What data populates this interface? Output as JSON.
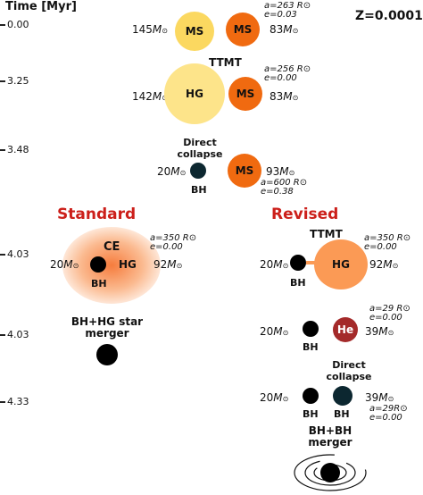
{
  "axis": {
    "title": "Time [Myr]"
  },
  "metallicity": "Z=0.0001",
  "times": [
    "0.00",
    "3.25",
    "3.48",
    "4.03",
    "4.03",
    "4.33"
  ],
  "stage1": {
    "m1": "145",
    "m2": "83",
    "s1": "MS",
    "s2": "MS",
    "a": "a=263 R",
    "e": "e=0.03"
  },
  "stage2": {
    "title": "TTMT",
    "m1": "142",
    "m2": "83",
    "s1": "HG",
    "s2": "MS",
    "a": "a=256 R",
    "e": "e=0.00"
  },
  "stage3": {
    "caption_l1": "Direct",
    "caption_l2": "collapse",
    "m1": "20",
    "m2": "93",
    "s1": "BH",
    "s2": "MS",
    "a": "a=600 R",
    "e": "e=0.38"
  },
  "standard": {
    "title": "Standard",
    "ce": {
      "label": "CE",
      "m1": "20",
      "m2": "92",
      "s1": "BH",
      "s2": "HG",
      "a": "a=350 R",
      "e": "e=0.00"
    },
    "merger_l1": "BH+HG star",
    "merger_l2": "merger"
  },
  "revised": {
    "title": "Revised",
    "ttmt": {
      "label": "TTMT",
      "m1": "20",
      "m2": "92",
      "s1": "BH",
      "s2": "HG",
      "a": "a=350 R",
      "e": "e=0.00"
    },
    "he": {
      "m1": "20",
      "m2": "39",
      "s1": "BH",
      "s2": "He",
      "a": "a=29 R",
      "e": "e=0.00"
    },
    "dc": {
      "caption_l1": "Direct",
      "caption_l2": "collapse",
      "m1": "20",
      "m2": "39",
      "s1": "BH",
      "s2": "BH",
      "a": "a=29R",
      "e": "e=0.00"
    },
    "merger_l1": "BH+BH",
    "merger_l2": "merger"
  },
  "units": {
    "msun": "M",
    "rsun": "R",
    "sun_symbol": "⊙"
  },
  "colors": {
    "ms_yellow": "#fbd860",
    "hg_yellow": "#fde48a",
    "ms_orange": "#f06a10",
    "hg_orange": "#fb9a55",
    "he_red": "#a42a2a",
    "bh_dark": "#0c2730",
    "title_red": "#cc1f1a"
  }
}
